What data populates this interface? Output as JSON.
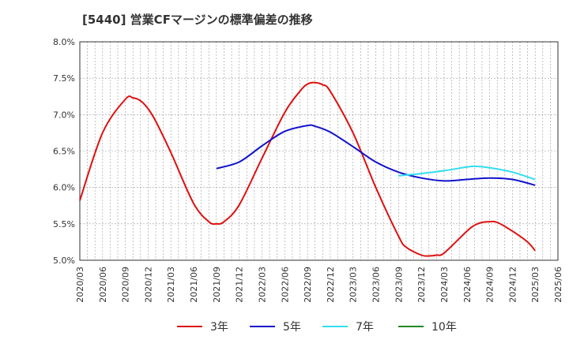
{
  "title": "[5440]  営業CFマージンの標準偏差の推移",
  "chart_data": {
    "type": "line",
    "title": "[5440]  営業CFマージンの標準偏差の推移",
    "xlabel": "",
    "ylabel": "",
    "ylim": [
      5.0,
      8.0
    ],
    "xlim": [
      "2020/03",
      "2025/06"
    ],
    "y_ticks": [
      "8.0%",
      "7.5%",
      "7.0%",
      "6.5%",
      "6.0%",
      "5.5%",
      "5.0%"
    ],
    "x_ticks": [
      "2020/03",
      "2020/06",
      "2020/09",
      "2020/12",
      "2021/03",
      "2021/06",
      "2021/09",
      "2021/12",
      "2022/03",
      "2022/06",
      "2022/09",
      "2022/12",
      "2023/03",
      "2023/06",
      "2023/09",
      "2023/12",
      "2024/03",
      "2024/06",
      "2024/09",
      "2024/12",
      "2025/03",
      "2025/06"
    ],
    "grid": true,
    "legend_position": "bottom",
    "series": [
      {
        "name": "3年",
        "color": "#dd1111",
        "points": [
          [
            "2020/03",
            5.82
          ],
          [
            "2020/06",
            6.75
          ],
          [
            "2020/09",
            7.21
          ],
          [
            "2020/10",
            7.23
          ],
          [
            "2020/11",
            7.19
          ],
          [
            "2020/12",
            7.08
          ],
          [
            "2021/01",
            6.91
          ],
          [
            "2021/03",
            6.48
          ],
          [
            "2021/06",
            5.78
          ],
          [
            "2021/08",
            5.53
          ],
          [
            "2021/09",
            5.5
          ],
          [
            "2021/10",
            5.53
          ],
          [
            "2021/12",
            5.76
          ],
          [
            "2022/03",
            6.4
          ],
          [
            "2022/06",
            7.03
          ],
          [
            "2022/08",
            7.32
          ],
          [
            "2022/09",
            7.42
          ],
          [
            "2022/10",
            7.44
          ],
          [
            "2022/11",
            7.41
          ],
          [
            "2022/12",
            7.32
          ],
          [
            "2023/03",
            6.75
          ],
          [
            "2023/06",
            6.0
          ],
          [
            "2023/09",
            5.33
          ],
          [
            "2023/10",
            5.18
          ],
          [
            "2023/12",
            5.07
          ],
          [
            "2024/01",
            5.06
          ],
          [
            "2024/02",
            5.07
          ],
          [
            "2024/03",
            5.1
          ],
          [
            "2024/06",
            5.4
          ],
          [
            "2024/07",
            5.48
          ],
          [
            "2024/08",
            5.52
          ],
          [
            "2024/09",
            5.53
          ],
          [
            "2024/10",
            5.52
          ],
          [
            "2024/12",
            5.4
          ],
          [
            "2025/02",
            5.25
          ],
          [
            "2025/03",
            5.13
          ]
        ]
      },
      {
        "name": "5年",
        "color": "#1111cc",
        "points": [
          [
            "2021/09",
            6.26
          ],
          [
            "2021/12",
            6.35
          ],
          [
            "2022/03",
            6.57
          ],
          [
            "2022/06",
            6.77
          ],
          [
            "2022/09",
            6.85
          ],
          [
            "2022/10",
            6.84
          ],
          [
            "2022/12",
            6.76
          ],
          [
            "2023/03",
            6.56
          ],
          [
            "2023/06",
            6.35
          ],
          [
            "2023/09",
            6.21
          ],
          [
            "2023/12",
            6.13
          ],
          [
            "2024/03",
            6.09
          ],
          [
            "2024/06",
            6.11
          ],
          [
            "2024/09",
            6.13
          ],
          [
            "2024/12",
            6.11
          ],
          [
            "2025/03",
            6.03
          ]
        ]
      },
      {
        "name": "7年",
        "color": "#33ddee",
        "points": [
          [
            "2023/09",
            6.16
          ],
          [
            "2023/12",
            6.19
          ],
          [
            "2024/03",
            6.23
          ],
          [
            "2024/06",
            6.28
          ],
          [
            "2024/07",
            6.29
          ],
          [
            "2024/09",
            6.27
          ],
          [
            "2024/12",
            6.21
          ],
          [
            "2025/03",
            6.11
          ]
        ]
      },
      {
        "name": "10年",
        "color": "#228822",
        "points": []
      }
    ]
  }
}
